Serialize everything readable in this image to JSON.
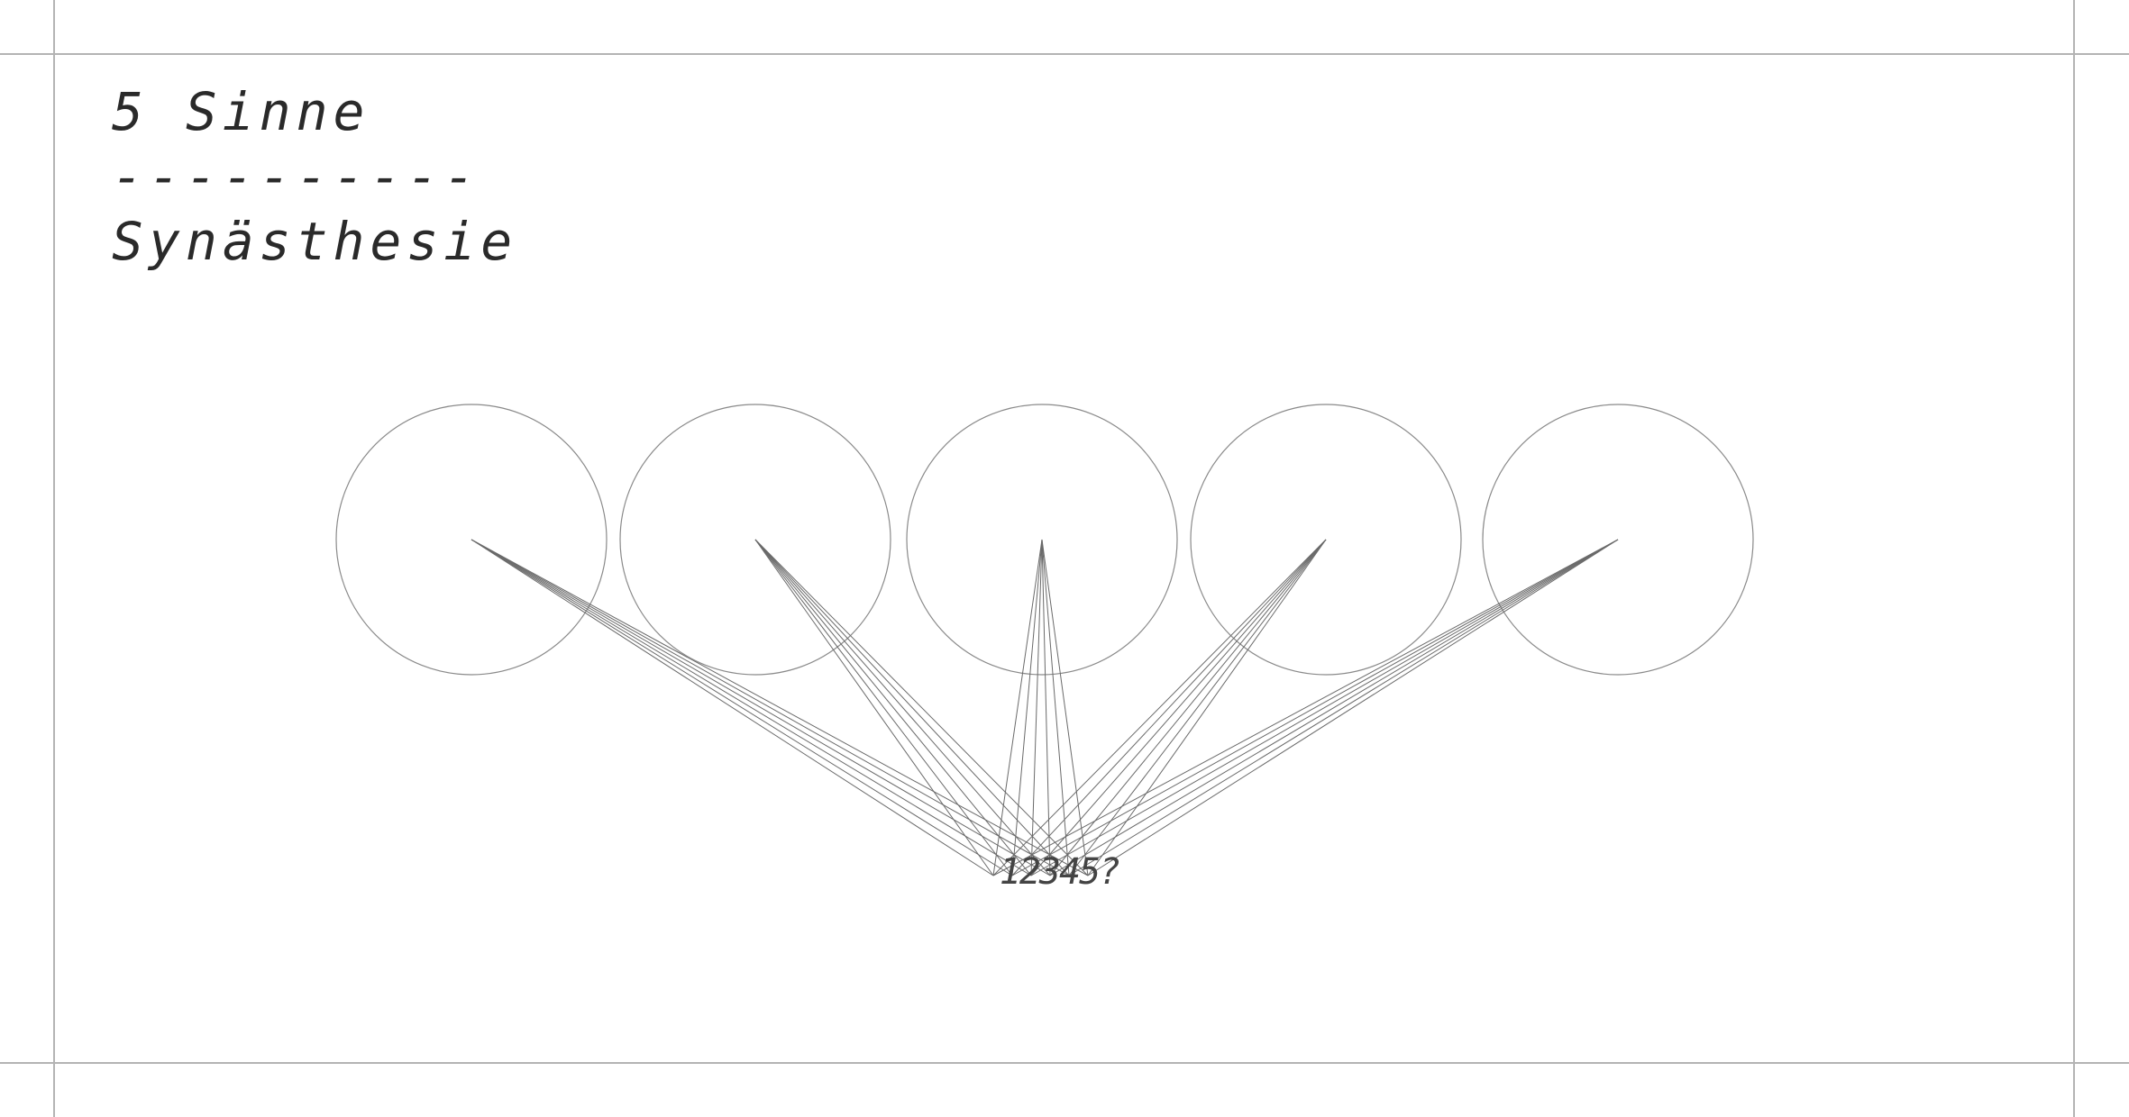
{
  "title": "5 Sinne",
  "separator": "----------",
  "subtitle": "Synästhesie",
  "bottom_label": "12345?",
  "senses_count": 5,
  "lines_per_sense": 6,
  "colors": {
    "frame": "#b4b4b4",
    "circle": "#8a8a8a",
    "line": "#6a6a6a",
    "text": "#2a2a2a"
  }
}
